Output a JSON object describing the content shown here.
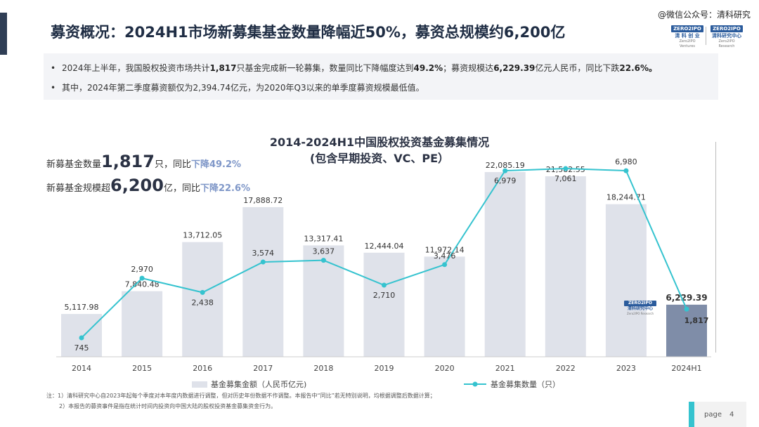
{
  "title": "募资概况：2024H1市场新募集基金数量降幅近50%，募资总规模约6,200亿",
  "watermark": "@微信公众号：清科研究",
  "logos": [
    {
      "tag": "ZERO2IPO",
      "cn": "清 科 创 业",
      "en": "Zero2IPO Ventures"
    },
    {
      "tag": "ZERO2IPO",
      "cn": "清科研究中心",
      "en": "Zero2IPO Research"
    }
  ],
  "summary": {
    "bullet1": {
      "parts": [
        "2024年上半年，我国股权投资市场共计",
        "1,817",
        "只基金完成新一轮募集，数量同比下降幅度达到",
        "49.2%",
        "；募资规模达",
        "6,229.39",
        "亿元人民币，同比下跌",
        "22.6%。"
      ]
    },
    "bullet2": "其中，2024年第二季度募资额仅为2,394.74亿元，为2020年Q3以来的单季度募资规模最低值。"
  },
  "kpis": [
    {
      "prefix": "新募基金数量",
      "value": "1,817",
      "suffix": "只，同比",
      "change": "下降49.2%"
    },
    {
      "prefix": "新募基金规模超",
      "value": "6,200",
      "suffix": "亿，同比",
      "change": "下降22.6%"
    }
  ],
  "chart_data": {
    "type": "bar",
    "title": "2014-2024H1中国股权投资基金募集情况",
    "subtitle": "(包含早期投资、VC、PE）",
    "categories": [
      "2014",
      "2015",
      "2016",
      "2017",
      "2018",
      "2019",
      "2020",
      "2021",
      "2022",
      "2023",
      "2024H1"
    ],
    "series": [
      {
        "name": "基金募集金额（人民币亿元)",
        "type": "bar",
        "values": [
          5117.98,
          7840.48,
          13712.05,
          17888.72,
          13317.41,
          12444.04,
          11972.14,
          22085.19,
          21582.55,
          18244.71,
          6229.39
        ],
        "labels": [
          "5,117.98",
          "7,840.48",
          "13,712.05",
          "17,888.72",
          "13,317.41",
          "12,444.04",
          "11,972.14",
          "22,085.19",
          "21,582.55",
          "18,244.71",
          "6,229.39"
        ],
        "color": "#dfe2ea",
        "highlight_color": "#7f8da8"
      },
      {
        "name": "基金募集数量（只）",
        "type": "line",
        "values": [
          745,
          2970,
          2438,
          3574,
          3637,
          2710,
          3476,
          6979,
          7061,
          6980,
          1817
        ],
        "labels": [
          "745",
          "2,970",
          "2,438",
          "3,574",
          "3,637",
          "2,710",
          "3,476",
          "6,979",
          "7,061",
          "6,980",
          "1,817"
        ],
        "color": "#35c3cf"
      }
    ],
    "grid": false,
    "legend": "bottom-center"
  },
  "chart_logo": {
    "tag": "ZERO2IPO",
    "cn": "清科研究中心",
    "en": "Zero2IPO Research"
  },
  "notes": {
    "line1": "注：1）清科研究中心自2023年起每个季度对本年度内数据进行调整，但对历史年份数据不作调整。本报告中“同比”若无特别说明，均根据调整后数据计算；",
    "line2": "2）本报告的募资事件是指在统计时间内投资向中国大陆的股权投资基金募集资金行为。"
  },
  "page": {
    "label": "page",
    "number": "4"
  }
}
